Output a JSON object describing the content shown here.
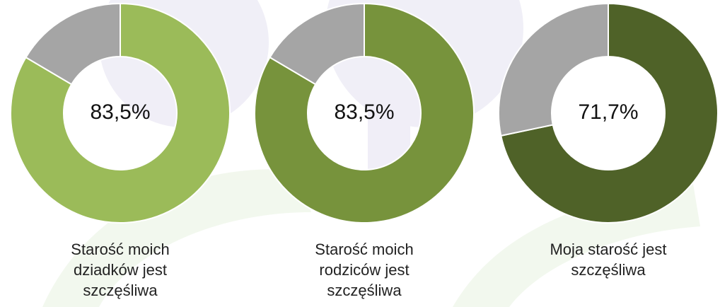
{
  "chart_data": [
    {
      "type": "donut",
      "title": "Starość moich dziadków jest szczęśliwa",
      "values": [
        83.5,
        16.5
      ],
      "value_labels": [
        "83,5%",
        null
      ],
      "colors": [
        "#9bbb59",
        "#a5a5a5"
      ]
    },
    {
      "type": "donut",
      "title": "Starość moich rodziców jest szczęśliwa",
      "values": [
        83.5,
        16.5
      ],
      "value_labels": [
        "83,5%",
        null
      ],
      "colors": [
        "#77933c",
        "#a5a5a5"
      ]
    },
    {
      "type": "donut",
      "title": "Moja starość jest szczęśliwa",
      "values": [
        71.7,
        28.3
      ],
      "value_labels": [
        "71,7%",
        null
      ],
      "colors": [
        "#4f6228",
        "#a5a5a5"
      ]
    }
  ]
}
